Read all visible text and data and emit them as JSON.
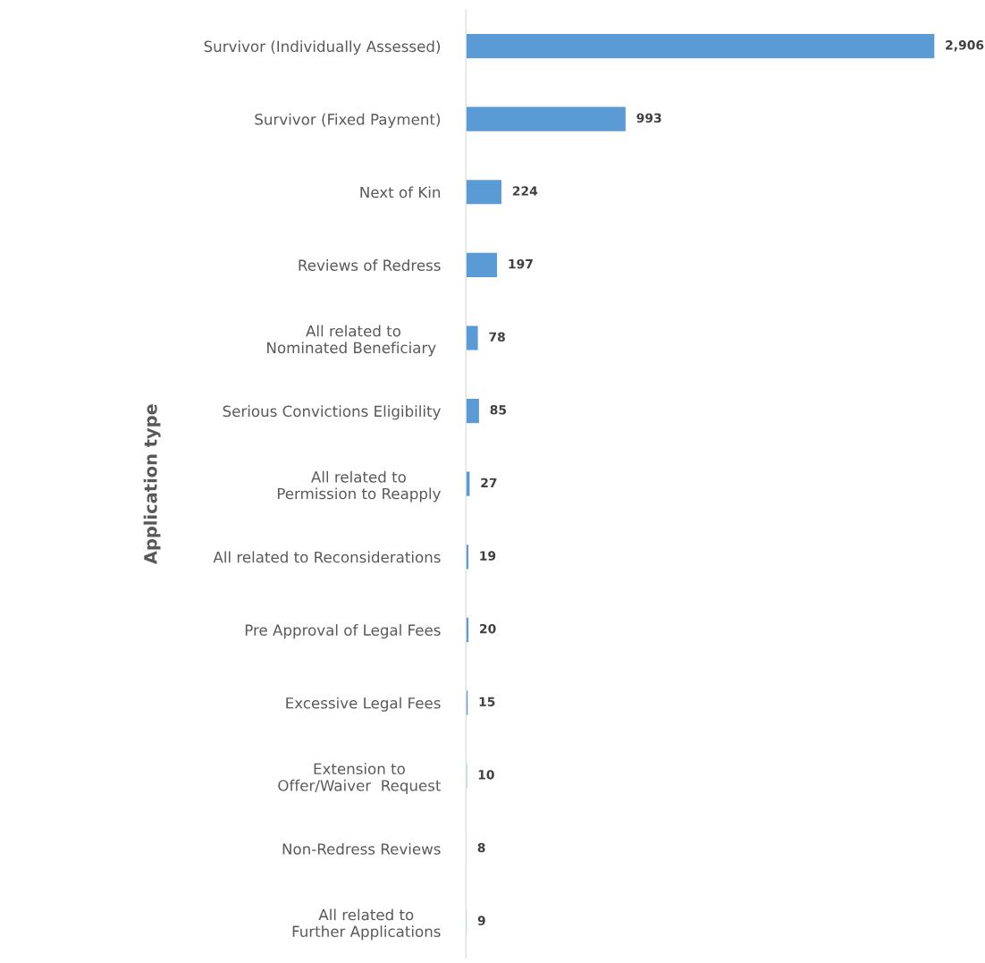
{
  "chart_data": {
    "type": "bar",
    "orientation": "horizontal",
    "ylabel": "Application type",
    "categories": [
      "Survivor (Individually Assessed)",
      "Survivor (Fixed Payment)",
      "Next of Kin",
      "Reviews of Redress",
      "All related to\nNominated Beneficiary ",
      "Serious Convictions Eligibility",
      "All related to\nPermission to Reapply",
      "All related to Reconsiderations",
      "Pre Approval of Legal Fees",
      "Excessive Legal Fees",
      "Extension to\nOffer/Waiver  Request",
      "Non-Redress Reviews",
      "All related to\nFurther Applications"
    ],
    "values": [
      2906,
      993,
      224,
      197,
      78,
      85,
      27,
      19,
      20,
      15,
      10,
      8,
      9
    ],
    "value_labels": [
      "2,906",
      "993",
      "224",
      "197",
      "78",
      "85",
      "27",
      "19",
      "20",
      "15",
      "10",
      "8",
      "9"
    ],
    "color": "#5b9bd5",
    "tick_labels": "y",
    "grid": false,
    "legend": false
  }
}
